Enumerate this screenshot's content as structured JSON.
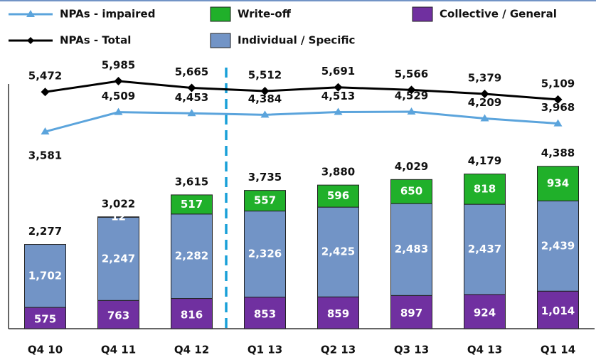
{
  "chart_data": {
    "type": "stacked-bar-line",
    "categories": [
      "Q4 10",
      "Q4 11",
      "Q4 12",
      "Q1 13",
      "Q2 13",
      "Q3 13",
      "Q4 13",
      "Q1 14"
    ],
    "series": [
      {
        "name": "Collective / General",
        "color": "#7030a0",
        "values": [
          575,
          763,
          816,
          853,
          859,
          897,
          924,
          1014
        ],
        "value_labels": [
          "575",
          "763",
          "816",
          "853",
          "859",
          "897",
          "924",
          "1,014"
        ]
      },
      {
        "name": "Individual / Specific",
        "color": "#7294c6",
        "values": [
          1702,
          2247,
          2282,
          2326,
          2425,
          2483,
          2437,
          2439
        ],
        "value_labels": [
          "1,702",
          "2,247",
          "2,282",
          "2,326",
          "2,425",
          "2,483",
          "2,437",
          "2,439"
        ]
      },
      {
        "name": "Write-off",
        "color": "#20b02a",
        "values": [
          null,
          12,
          517,
          557,
          596,
          650,
          818,
          934
        ],
        "value_labels": [
          null,
          "12",
          "517",
          "557",
          "596",
          "650",
          "818",
          "934"
        ]
      },
      {
        "name": "NPAs - impaired",
        "color": "#5ba4dc",
        "axis": "y2",
        "type": "line",
        "values": [
          3581,
          4509,
          4453,
          4384,
          4513,
          4529,
          4209,
          3968
        ],
        "value_labels": [
          "3,581",
          "4,509",
          "4,453",
          "4,384",
          "4,513",
          "4,529",
          "4,209",
          "3,968"
        ]
      },
      {
        "name": "NPAs - Total",
        "color": "#000000",
        "axis": "y2",
        "type": "line",
        "values": [
          5472,
          5985,
          5665,
          5512,
          5691,
          5566,
          5379,
          5109
        ],
        "value_labels": [
          "5,472",
          "5,985",
          "5,665",
          "5,512",
          "5,691",
          "5,566",
          "5,379",
          "5,109"
        ]
      }
    ],
    "totals": [
      2277,
      3022,
      3615,
      3735,
      3880,
      4029,
      4179,
      4388
    ],
    "total_labels": [
      "2,277",
      "3,022",
      "3,615",
      "3,735",
      "3,880",
      "4,029",
      "4,179",
      "4,388"
    ],
    "ylim": [
      0,
      7150
    ],
    "y2lim": [
      -5800,
      6800
    ]
  }
}
